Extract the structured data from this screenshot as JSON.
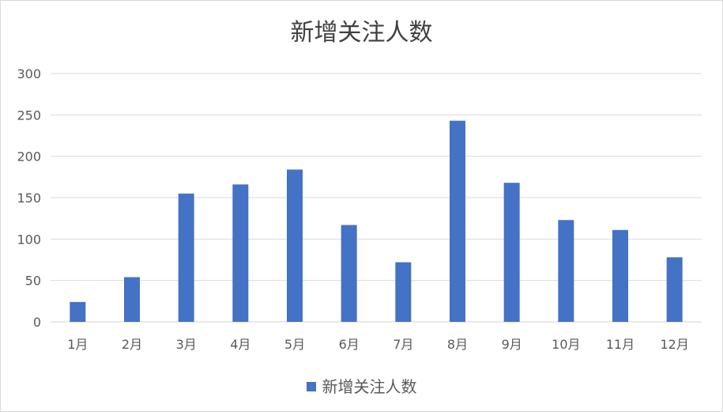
{
  "chart_data": {
    "type": "bar",
    "title": "新增关注人数",
    "categories": [
      "1月",
      "2月",
      "3月",
      "4月",
      "5月",
      "6月",
      "7月",
      "8月",
      "9月",
      "10月",
      "11月",
      "12月"
    ],
    "series": [
      {
        "name": "新增关注人数",
        "values": [
          24,
          54,
          155,
          166,
          184,
          117,
          72,
          243,
          168,
          123,
          111,
          78
        ]
      }
    ],
    "yticks": [
      "0",
      "50",
      "100",
      "150",
      "200",
      "250",
      "300"
    ],
    "ylim": [
      0,
      300
    ],
    "grid": true,
    "legend_position": "bottom",
    "bar_color": "#4472c4",
    "grid_color": "#d9d9d9"
  }
}
